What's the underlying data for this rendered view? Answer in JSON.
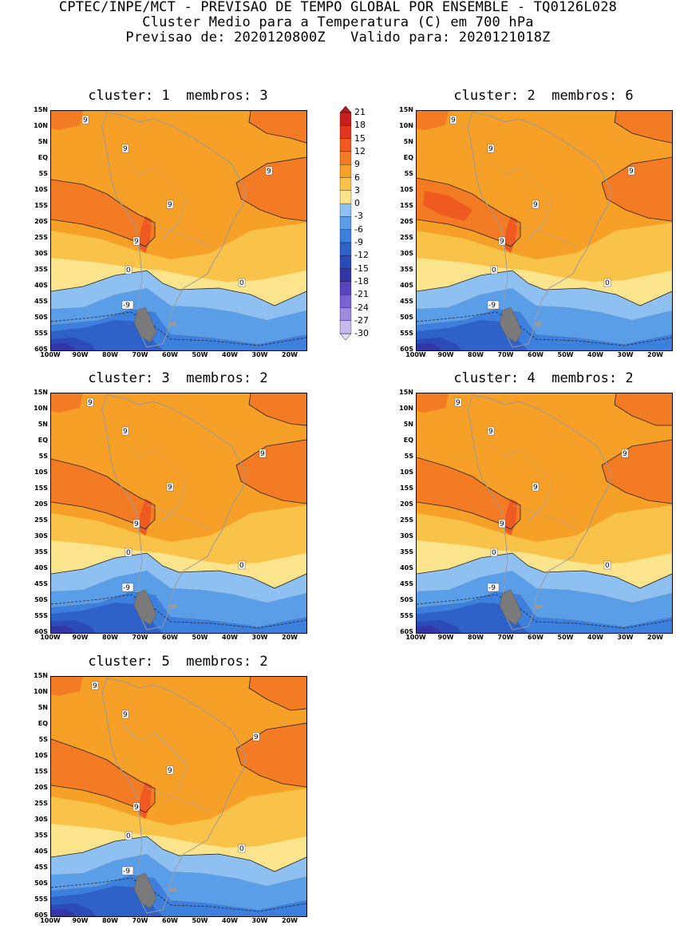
{
  "header": {
    "line1": "CPTEC/INPE/MCT - PREVISAO DE TEMPO GLOBAL POR ENSEMBLE - TQ0126L028",
    "line2": "Cluster Medio para a Temperatura (C) em 700 hPa",
    "line3": "Previsao de: 2020120800Z   Valido para: 2020121018Z"
  },
  "axes": {
    "lat_labels": [
      "15N",
      "10N",
      "5N",
      "EQ",
      "5S",
      "10S",
      "15S",
      "20S",
      "25S",
      "30S",
      "35S",
      "40S",
      "45S",
      "50S",
      "55S",
      "60S"
    ],
    "lon_labels": [
      "100W",
      "90W",
      "80W",
      "70W",
      "60W",
      "50W",
      "40W",
      "30W",
      "20W"
    ]
  },
  "colorbar": {
    "levels": [
      "21",
      "18",
      "15",
      "12",
      "9",
      "6",
      "3",
      "0",
      "-3",
      "-6",
      "-9",
      "-12",
      "-15",
      "-18",
      "-21",
      "-24",
      "-27",
      "-30"
    ],
    "colors": {
      "band_21_plus": "#b3161c",
      "band_18_21": "#c81e1e",
      "band_15_18": "#e0351f",
      "band_12_15": "#ee5a20",
      "band_9_12": "#f37b23",
      "band_6_9": "#f6a028",
      "band_3_6": "#f9c34a",
      "band_0_3": "#fbe48c",
      "band_m3_0": "#8fc0f2",
      "band_m6_m3": "#5b9ee8",
      "band_m9_m6": "#3d7fdc",
      "band_m12_m9": "#2e62c8",
      "band_m15_m12": "#2b4bb8",
      "band_m18_m15": "#3436a8",
      "band_m21_m18": "#5a44c0",
      "band_m24_m21": "#7a62d2",
      "band_m27_m24": "#a089e0",
      "band_m30_m27": "#c7b8ee",
      "band_below_m30": "#e6def8"
    }
  },
  "contour_labels": {
    "nine": "9",
    "zero": "0",
    "minus_nine": "-9"
  },
  "panels": [
    {
      "title": "cluster: 1  membros: 3"
    },
    {
      "title": "cluster: 2  membros: 6"
    },
    {
      "title": "cluster: 3  membros: 2"
    },
    {
      "title": "cluster: 4  membros: 2"
    },
    {
      "title": "cluster: 5  membros: 2"
    }
  ]
}
